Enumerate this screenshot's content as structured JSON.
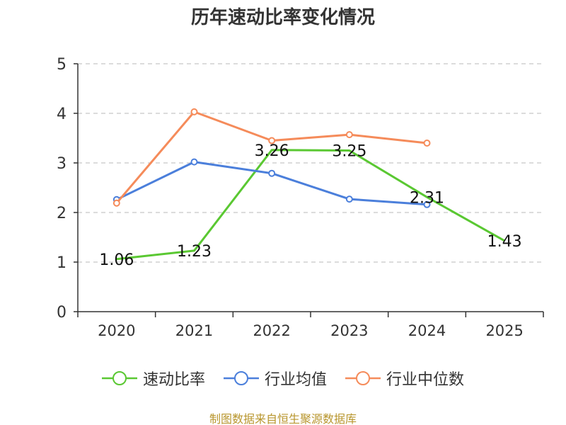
{
  "chart_data": {
    "type": "line",
    "title": "历年速动比率变化情况",
    "categories": [
      "2020",
      "2021",
      "2022",
      "2023",
      "2024",
      "2025"
    ],
    "ylim": [
      0,
      5
    ],
    "yticks": [
      0,
      1,
      2,
      3,
      4,
      5
    ],
    "grid": true,
    "legend_position": "bottom",
    "series": [
      {
        "name": "速动比率",
        "color": "#5ac832",
        "values": [
          1.06,
          1.23,
          3.26,
          3.25,
          2.31,
          1.43
        ],
        "labels": [
          "1.06",
          "1.23",
          "3.26",
          "3.25",
          "2.31",
          "1.43"
        ],
        "show_markers": false
      },
      {
        "name": "行业均值",
        "color": "#4b7fdb",
        "values": [
          2.26,
          3.02,
          2.79,
          2.27,
          2.16,
          null
        ],
        "show_markers": true
      },
      {
        "name": "行业中位数",
        "color": "#f58b5a",
        "values": [
          2.19,
          4.03,
          3.45,
          3.57,
          3.4,
          null
        ],
        "show_markers": true
      }
    ]
  },
  "footer": {
    "source": "制图数据来自恒生聚源数据库"
  }
}
